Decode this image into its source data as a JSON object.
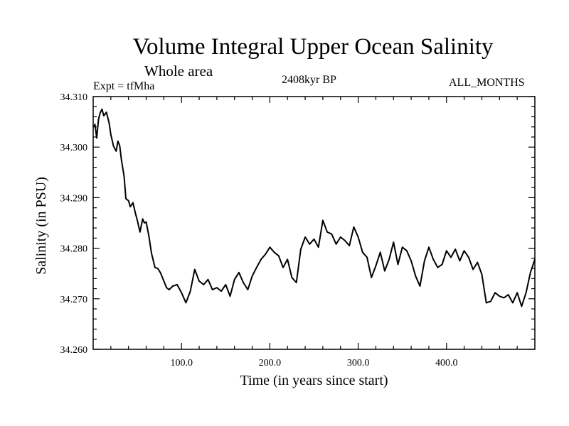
{
  "header": {
    "title": "Volume Integral Upper Ocean Salinity",
    "subtitle": "Whole area",
    "experiment": "Expt = tfMha",
    "period": "2408kyr BP",
    "months": "ALL_MONTHS"
  },
  "chart_data": {
    "type": "line",
    "title": "Volume Integral Upper Ocean Salinity",
    "xlabel": "Time (in years since start)",
    "ylabel": "Salinity (in PSU)",
    "xlim": [
      0,
      500
    ],
    "ylim": [
      34.26,
      34.31
    ],
    "xticks": [
      100,
      200,
      300,
      400
    ],
    "xtick_labels": [
      "100.0",
      "200.0",
      "300.0",
      "400.0"
    ],
    "yticks": [
      34.26,
      34.27,
      34.28,
      34.29,
      34.3,
      34.31
    ],
    "ytick_labels": [
      "34.260",
      "34.270",
      "34.280",
      "34.290",
      "34.300",
      "34.310"
    ],
    "grid": false,
    "series": [
      {
        "name": "Salinity",
        "x": [
          0,
          2,
          4,
          6,
          8,
          10,
          12,
          15,
          18,
          20,
          23,
          26,
          28,
          30,
          32,
          35,
          37,
          40,
          42,
          45,
          48,
          50,
          53,
          56,
          58,
          60,
          63,
          66,
          70,
          73,
          76,
          80,
          83,
          86,
          90,
          95,
          100,
          105,
          110,
          115,
          120,
          125,
          130,
          135,
          140,
          145,
          150,
          155,
          160,
          165,
          170,
          175,
          180,
          185,
          190,
          195,
          200,
          205,
          210,
          215,
          220,
          225,
          230,
          235,
          240,
          245,
          250,
          255,
          260,
          265,
          270,
          275,
          280,
          285,
          290,
          295,
          300,
          305,
          310,
          315,
          320,
          325,
          330,
          335,
          340,
          345,
          350,
          355,
          360,
          365,
          370,
          375,
          380,
          385,
          390,
          395,
          400,
          405,
          410,
          415,
          420,
          425,
          430,
          435,
          440,
          445,
          450,
          455,
          460,
          465,
          470,
          475,
          480,
          485,
          490,
          495,
          500
        ],
        "y": [
          34.304,
          34.3045,
          34.3018,
          34.3055,
          34.3068,
          34.3075,
          34.3062,
          34.3069,
          34.3048,
          34.3025,
          34.3002,
          34.2992,
          34.3012,
          34.3003,
          34.2975,
          34.2942,
          34.2898,
          34.2894,
          34.2882,
          34.289,
          34.2868,
          34.2855,
          34.2832,
          34.2858,
          34.285,
          34.2852,
          34.2825,
          34.279,
          34.2762,
          34.276,
          34.2752,
          34.2735,
          34.2722,
          34.2718,
          34.2725,
          34.2728,
          34.2712,
          34.2692,
          34.2715,
          34.2758,
          34.2735,
          34.2728,
          34.2738,
          34.2718,
          34.2722,
          34.2715,
          34.2728,
          34.2705,
          34.2738,
          34.2752,
          34.2732,
          34.2718,
          34.2745,
          34.2762,
          34.2778,
          34.2788,
          34.2802,
          34.2792,
          34.2785,
          34.2762,
          34.2778,
          34.2742,
          34.2732,
          34.2798,
          34.2822,
          34.2808,
          34.2818,
          34.2802,
          34.2855,
          34.2832,
          34.2828,
          34.2808,
          34.2822,
          34.2815,
          34.2805,
          34.2842,
          34.2822,
          34.2792,
          34.2782,
          34.2742,
          34.2765,
          34.2792,
          34.2755,
          34.2778,
          34.2812,
          34.2768,
          34.2802,
          34.2795,
          34.2775,
          34.2745,
          34.2725,
          34.2775,
          34.2802,
          34.2778,
          34.2762,
          34.2768,
          34.2795,
          34.2782,
          34.2798,
          34.2775,
          34.2795,
          34.2782,
          34.2758,
          34.2772,
          34.2748,
          34.2692,
          34.2695,
          34.2712,
          34.2705,
          34.2702,
          34.2708,
          34.2692,
          34.2712,
          34.2685,
          34.2712,
          34.2752,
          34.2778
        ]
      }
    ]
  }
}
